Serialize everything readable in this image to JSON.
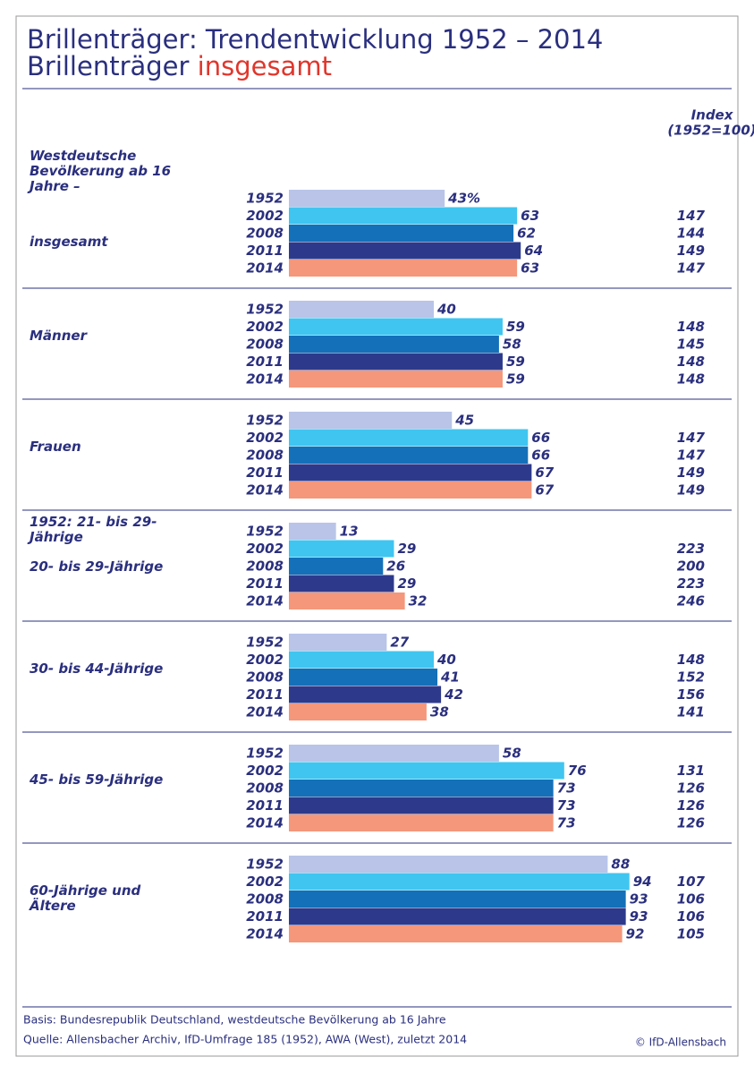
{
  "chart_data": {
    "type": "bar",
    "title": "Brillenträger: Trendentwicklung 1952 – 2014",
    "subtitle": "Brillenträger",
    "subtitle_highlight": "insgesamt",
    "index_title": [
      "Index",
      "(1952=100)"
    ],
    "years": [
      "1952",
      "2002",
      "2008",
      "2011",
      "2014"
    ],
    "colors": [
      "#b9c4e8",
      "#3fc5f0",
      "#1470b8",
      "#2d3a8c",
      "#f4977b"
    ],
    "xlim": [
      0,
      100
    ],
    "groups": [
      {
        "labels": [
          "Westdeutsche Bevölkerung ab 16 Jahre –",
          "insgesamt"
        ],
        "values": [
          43,
          63,
          62,
          64,
          63
        ],
        "value_labels": [
          "43%",
          "63",
          "62",
          "64",
          "63"
        ],
        "index": [
          null,
          147,
          144,
          149,
          147
        ]
      },
      {
        "labels": [
          "Männer"
        ],
        "values": [
          40,
          59,
          58,
          59,
          59
        ],
        "index": [
          null,
          148,
          145,
          148,
          148
        ]
      },
      {
        "labels": [
          "Frauen"
        ],
        "values": [
          45,
          66,
          66,
          67,
          67
        ],
        "index": [
          null,
          147,
          147,
          149,
          149
        ]
      },
      {
        "labels": [
          "1952: 21- bis 29-Jährige",
          "20- bis 29-Jährige"
        ],
        "values": [
          13,
          29,
          26,
          29,
          32
        ],
        "index": [
          null,
          223,
          200,
          223,
          246
        ]
      },
      {
        "labels": [
          "30- bis 44-Jährige"
        ],
        "values": [
          27,
          40,
          41,
          42,
          38
        ],
        "index": [
          null,
          148,
          152,
          156,
          141
        ]
      },
      {
        "labels": [
          "45- bis 59-Jährige"
        ],
        "values": [
          58,
          76,
          73,
          73,
          73
        ],
        "index": [
          null,
          131,
          126,
          126,
          126
        ]
      },
      {
        "labels": [
          "60-Jährige und Ältere"
        ],
        "values": [
          88,
          94,
          93,
          93,
          92
        ],
        "index": [
          null,
          107,
          106,
          106,
          105
        ]
      }
    ],
    "notes": [
      "Basis: Bundesrepublik Deutschland, westdeutsche Bevölkerung ab 16 Jahre",
      "Quelle: Allensbacher Archiv, IfD-Umfrage 185 (1952), AWA (West), zuletzt 2014"
    ],
    "credit": "© IfD-Allensbach"
  }
}
